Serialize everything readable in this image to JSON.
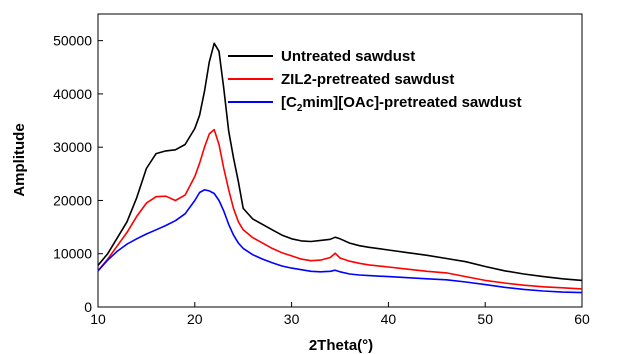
{
  "chart_data": {
    "type": "line",
    "xlabel": "2Theta(°)",
    "ylabel": "Amplitude",
    "xlim": [
      10,
      60
    ],
    "ylim": [
      0,
      55000
    ],
    "xticks": [
      10,
      20,
      30,
      40,
      50,
      60
    ],
    "yticks": [
      0,
      10000,
      20000,
      30000,
      40000,
      50000
    ],
    "grid": false,
    "legend_position": "top-right",
    "legend": {
      "untreated": "Untreated sawdust",
      "zil2": "ZIL2-pretreated sawdust",
      "c2mim_prefix": "[C",
      "c2mim_subscript": "2",
      "c2mim_suffix": "mim][OAc]-pretreated sawdust"
    },
    "series": [
      {
        "name": "Untreated sawdust",
        "color": "#000000",
        "x": [
          10,
          11,
          12,
          13,
          14,
          15,
          16,
          17,
          18,
          19,
          20,
          20.5,
          21,
          21.5,
          22,
          22.5,
          23,
          23.5,
          24,
          24.5,
          25,
          26,
          27,
          28,
          29,
          30,
          31,
          32,
          33,
          34,
          34.5,
          35,
          36,
          37,
          38,
          40,
          42,
          44,
          46,
          48,
          50,
          52,
          54,
          56,
          58,
          60
        ],
        "y": [
          7800,
          10000,
          13000,
          16000,
          20500,
          26000,
          28800,
          29300,
          29500,
          30500,
          33500,
          36000,
          40500,
          46000,
          49500,
          48000,
          41000,
          33000,
          28000,
          23500,
          18500,
          16500,
          15500,
          14500,
          13500,
          12800,
          12400,
          12300,
          12500,
          12700,
          13100,
          12800,
          12000,
          11500,
          11200,
          10700,
          10200,
          9700,
          9100,
          8500,
          7600,
          6800,
          6200,
          5700,
          5300,
          5000
        ]
      },
      {
        "name": "ZIL2-pretreated sawdust",
        "color": "#ff0000",
        "x": [
          10,
          11,
          12,
          13,
          14,
          15,
          16,
          17,
          18,
          19,
          20,
          20.5,
          21,
          21.5,
          22,
          22.5,
          23,
          23.5,
          24,
          24.5,
          25,
          26,
          27,
          28,
          29,
          30,
          31,
          32,
          33,
          34,
          34.5,
          35,
          36,
          37,
          38,
          40,
          42,
          44,
          46,
          48,
          50,
          52,
          54,
          56,
          58,
          60
        ],
        "y": [
          6800,
          9000,
          11500,
          14000,
          17000,
          19500,
          20700,
          20800,
          20000,
          21000,
          24500,
          27000,
          30000,
          32500,
          33300,
          30500,
          26000,
          22000,
          18500,
          16000,
          14500,
          13000,
          12000,
          11000,
          10200,
          9600,
          9000,
          8700,
          8800,
          9300,
          10100,
          9200,
          8600,
          8200,
          7900,
          7500,
          7100,
          6700,
          6400,
          5700,
          5000,
          4500,
          4100,
          3800,
          3600,
          3400
        ]
      },
      {
        "name": "[C2mim][OAc]-pretreated sawdust",
        "color": "#0000ff",
        "x": [
          10,
          11,
          12,
          13,
          14,
          15,
          16,
          17,
          18,
          19,
          20,
          20.5,
          21,
          21.5,
          22,
          22.5,
          23,
          23.5,
          24,
          24.5,
          25,
          26,
          27,
          28,
          29,
          30,
          31,
          32,
          33,
          34,
          34.5,
          35,
          36,
          37,
          38,
          40,
          42,
          44,
          46,
          48,
          50,
          52,
          54,
          56,
          58,
          60
        ],
        "y": [
          6800,
          8800,
          10500,
          11800,
          12800,
          13700,
          14500,
          15300,
          16200,
          17500,
          20000,
          21500,
          22000,
          21800,
          21300,
          20000,
          18000,
          15500,
          13500,
          12000,
          11000,
          9800,
          9000,
          8300,
          7700,
          7300,
          7000,
          6700,
          6600,
          6700,
          6900,
          6600,
          6200,
          6000,
          5900,
          5700,
          5500,
          5300,
          5100,
          4700,
          4200,
          3700,
          3300,
          3000,
          2800,
          2700
        ]
      }
    ]
  }
}
